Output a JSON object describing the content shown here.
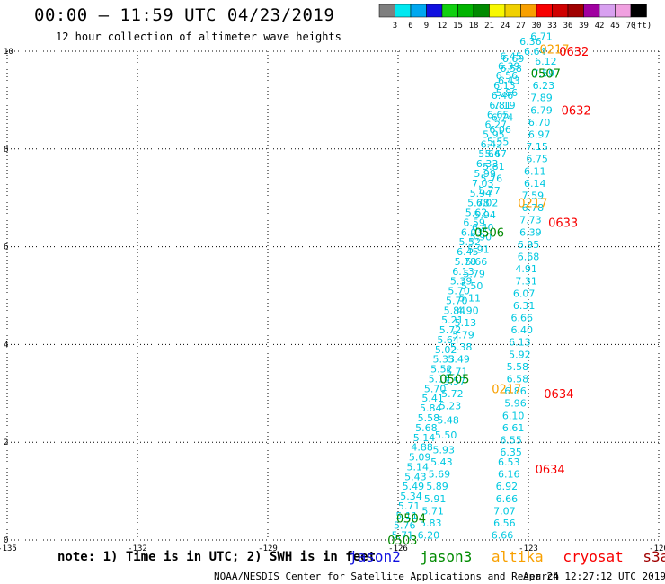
{
  "header": {
    "title": "00:00 – 11:59 UTC 04/23/2019",
    "subtitle": "12 hour collection of altimeter wave heights"
  },
  "colorbar": {
    "unit": "(ft)",
    "bins": [
      {
        "label": "3",
        "color": "#7f7f7f"
      },
      {
        "label": "6",
        "color": "#00e8f0"
      },
      {
        "label": "9",
        "color": "#00a8f0"
      },
      {
        "label": "12",
        "color": "#1010e0"
      },
      {
        "label": "15",
        "color": "#10d010"
      },
      {
        "label": "18",
        "color": "#00b400"
      },
      {
        "label": "21",
        "color": "#008a00"
      },
      {
        "label": "24",
        "color": "#f8f800"
      },
      {
        "label": "27",
        "color": "#f0d000"
      },
      {
        "label": "30",
        "color": "#f8a000"
      },
      {
        "label": "33",
        "color": "#f80000"
      },
      {
        "label": "36",
        "color": "#d00000"
      },
      {
        "label": "39",
        "color": "#a00000"
      },
      {
        "label": "42",
        "color": "#a000a0"
      },
      {
        "label": "45",
        "color": "#d8a0f0"
      },
      {
        "label": "70",
        "color": "#f0a0e0"
      },
      {
        "label": "",
        "color": "#000000"
      }
    ]
  },
  "map": {
    "lon_range": [
      -135,
      -120
    ],
    "lat_range": [
      0,
      10
    ],
    "lon_ticks": [
      "-135",
      "-132",
      "-129",
      "-126",
      "-123",
      "-120"
    ],
    "lat_ticks": [
      "0",
      "2",
      "4",
      "6",
      "8",
      "10"
    ],
    "grid": "dotted"
  },
  "chart_data": {
    "type": "scatter",
    "colors": {
      "swh": "#00c8e0",
      "jason3": "#008a00",
      "altika": "#f8a000",
      "cryosat": "#f80000"
    },
    "tracks": [
      {
        "name": "jason3 0503-0505",
        "points": [
          {
            "lon": -125.9,
            "lat": 0.1,
            "swh": "5.71"
          },
          {
            "lon": -125.85,
            "lat": 0.3,
            "swh": "5.76"
          },
          {
            "lon": -125.8,
            "lat": 0.5,
            "swh": "5.11"
          },
          {
            "lon": -125.75,
            "lat": 0.7,
            "swh": "5.71"
          },
          {
            "lon": -125.7,
            "lat": 0.9,
            "swh": "5.34"
          },
          {
            "lon": -125.65,
            "lat": 1.1,
            "swh": "5.49"
          },
          {
            "lon": -125.6,
            "lat": 1.3,
            "swh": "5.43"
          },
          {
            "lon": -125.55,
            "lat": 1.5,
            "swh": "5.14"
          },
          {
            "lon": -125.5,
            "lat": 1.7,
            "swh": "5.09"
          },
          {
            "lon": -125.45,
            "lat": 1.9,
            "swh": "4.88"
          },
          {
            "lon": -125.4,
            "lat": 2.1,
            "swh": "5.14"
          },
          {
            "lon": -125.35,
            "lat": 2.3,
            "swh": "5.68"
          },
          {
            "lon": -125.3,
            "lat": 2.5,
            "swh": "5.58"
          },
          {
            "lon": -125.25,
            "lat": 2.7,
            "swh": "5.84"
          },
          {
            "lon": -125.2,
            "lat": 2.9,
            "swh": "5.41"
          },
          {
            "lon": -125.15,
            "lat": 3.1,
            "swh": "5.70"
          },
          {
            "lon": -125.05,
            "lat": 3.3,
            "swh": "5.15"
          },
          {
            "lon": -125.0,
            "lat": 3.5,
            "swh": "5.52"
          },
          {
            "lon": -124.95,
            "lat": 3.7,
            "swh": "5.33"
          },
          {
            "lon": -124.9,
            "lat": 3.9,
            "swh": "5.02"
          },
          {
            "lon": -124.85,
            "lat": 4.1,
            "swh": "5.64"
          },
          {
            "lon": -124.8,
            "lat": 4.3,
            "swh": "5.72"
          },
          {
            "lon": -124.75,
            "lat": 4.5,
            "swh": "5.21"
          },
          {
            "lon": -124.7,
            "lat": 4.7,
            "swh": "5.84"
          },
          {
            "lon": -124.65,
            "lat": 4.9,
            "swh": "5.70"
          },
          {
            "lon": -124.6,
            "lat": 5.1,
            "swh": "5.70"
          },
          {
            "lon": -124.55,
            "lat": 5.3,
            "swh": "5.39"
          },
          {
            "lon": -124.5,
            "lat": 5.5,
            "swh": "6.13"
          },
          {
            "lon": -124.45,
            "lat": 5.7,
            "swh": "5.78"
          },
          {
            "lon": -124.4,
            "lat": 5.9,
            "swh": "6.45"
          },
          {
            "lon": -124.35,
            "lat": 6.1,
            "swh": "5.52"
          },
          {
            "lon": -124.3,
            "lat": 6.3,
            "swh": "6.03"
          },
          {
            "lon": -124.25,
            "lat": 6.5,
            "swh": "6.59"
          },
          {
            "lon": -124.2,
            "lat": 6.7,
            "swh": "5.62"
          },
          {
            "lon": -124.15,
            "lat": 6.9,
            "swh": "5.78"
          },
          {
            "lon": -124.1,
            "lat": 7.1,
            "swh": "5.94"
          },
          {
            "lon": -124.05,
            "lat": 7.3,
            "swh": "7.03"
          },
          {
            "lon": -124.0,
            "lat": 7.5,
            "swh": "5.99"
          },
          {
            "lon": -123.95,
            "lat": 7.7,
            "swh": "6.33"
          },
          {
            "lon": -123.9,
            "lat": 7.9,
            "swh": "5.64"
          },
          {
            "lon": -123.85,
            "lat": 8.1,
            "swh": "6.42"
          },
          {
            "lon": -123.8,
            "lat": 8.3,
            "swh": "5.95"
          },
          {
            "lon": -123.75,
            "lat": 8.5,
            "swh": "6.27"
          },
          {
            "lon": -123.7,
            "lat": 8.7,
            "swh": "6.65"
          },
          {
            "lon": -123.65,
            "lat": 8.9,
            "swh": "6.81"
          },
          {
            "lon": -123.6,
            "lat": 9.1,
            "swh": "6.46"
          },
          {
            "lon": -123.55,
            "lat": 9.3,
            "swh": "6.13"
          },
          {
            "lon": -123.5,
            "lat": 9.5,
            "swh": "6.56"
          },
          {
            "lon": -123.45,
            "lat": 9.7,
            "swh": "6.39"
          },
          {
            "lon": -123.4,
            "lat": 9.9,
            "swh": "6.45"
          }
        ]
      },
      {
        "name": "jason3 0504-0507",
        "points": [
          {
            "lon": -125.3,
            "lat": 0.1,
            "swh": "6.20"
          },
          {
            "lon": -125.25,
            "lat": 0.35,
            "swh": "5.83"
          },
          {
            "lon": -125.2,
            "lat": 0.6,
            "swh": "5.71"
          },
          {
            "lon": -125.15,
            "lat": 0.85,
            "swh": "5.91"
          },
          {
            "lon": -125.1,
            "lat": 1.1,
            "swh": "5.89"
          },
          {
            "lon": -125.05,
            "lat": 1.35,
            "swh": "5.69"
          },
          {
            "lon": -125.0,
            "lat": 1.6,
            "swh": "5.43"
          },
          {
            "lon": -124.95,
            "lat": 1.85,
            "swh": "5.93"
          },
          {
            "lon": -124.9,
            "lat": 2.15,
            "swh": "5.50"
          },
          {
            "lon": -124.85,
            "lat": 2.45,
            "swh": "5.48"
          },
          {
            "lon": -124.8,
            "lat": 2.75,
            "swh": "5.23"
          },
          {
            "lon": -124.75,
            "lat": 3.0,
            "swh": "5.72"
          },
          {
            "lon": -124.7,
            "lat": 3.25,
            "swh": "5.57"
          },
          {
            "lon": -124.65,
            "lat": 3.45,
            "swh": "5.71"
          },
          {
            "lon": -124.6,
            "lat": 3.7,
            "swh": "5.49"
          },
          {
            "lon": -124.55,
            "lat": 3.95,
            "swh": "5.38"
          },
          {
            "lon": -124.5,
            "lat": 4.2,
            "swh": "5.79"
          },
          {
            "lon": -124.45,
            "lat": 4.45,
            "swh": "5.13"
          },
          {
            "lon": -124.4,
            "lat": 4.7,
            "swh": "4.90"
          },
          {
            "lon": -124.35,
            "lat": 4.95,
            "swh": "5.11"
          },
          {
            "lon": -124.3,
            "lat": 5.2,
            "swh": "5.50"
          },
          {
            "lon": -124.25,
            "lat": 5.45,
            "swh": "5.79"
          },
          {
            "lon": -124.2,
            "lat": 5.7,
            "swh": "5.66"
          },
          {
            "lon": -124.15,
            "lat": 5.95,
            "swh": "5.91"
          },
          {
            "lon": -124.1,
            "lat": 6.2,
            "swh": "5.90"
          },
          {
            "lon": -124.05,
            "lat": 6.4,
            "swh": "6.40"
          },
          {
            "lon": -124.0,
            "lat": 6.65,
            "swh": "5.94"
          },
          {
            "lon": -123.95,
            "lat": 6.9,
            "swh": "6.02"
          },
          {
            "lon": -123.9,
            "lat": 7.15,
            "swh": "5.77"
          },
          {
            "lon": -123.85,
            "lat": 7.4,
            "swh": "5.76"
          },
          {
            "lon": -123.8,
            "lat": 7.65,
            "swh": "5.81"
          },
          {
            "lon": -123.75,
            "lat": 7.9,
            "swh": "5.67"
          },
          {
            "lon": -123.7,
            "lat": 8.15,
            "swh": "5.55"
          },
          {
            "lon": -123.65,
            "lat": 8.4,
            "swh": "6.06"
          },
          {
            "lon": -123.6,
            "lat": 8.65,
            "swh": "6.74"
          },
          {
            "lon": -123.55,
            "lat": 8.9,
            "swh": "7.19"
          },
          {
            "lon": -123.5,
            "lat": 9.15,
            "swh": "5.86"
          },
          {
            "lon": -123.45,
            "lat": 9.4,
            "swh": "6.43"
          },
          {
            "lon": -123.4,
            "lat": 9.65,
            "swh": "6.58"
          },
          {
            "lon": -123.35,
            "lat": 9.85,
            "swh": "6.69"
          }
        ]
      },
      {
        "name": "cryosat 0634-0632",
        "points": [
          {
            "lon": -123.6,
            "lat": 0.1,
            "swh": "6.66"
          },
          {
            "lon": -123.55,
            "lat": 0.35,
            "swh": "6.56"
          },
          {
            "lon": -123.55,
            "lat": 0.6,
            "swh": "7.07"
          },
          {
            "lon": -123.5,
            "lat": 0.85,
            "swh": "6.66"
          },
          {
            "lon": -123.5,
            "lat": 1.1,
            "swh": "6.92"
          },
          {
            "lon": -123.45,
            "lat": 1.35,
            "swh": "6.16"
          },
          {
            "lon": -123.45,
            "lat": 1.6,
            "swh": "6.53"
          },
          {
            "lon": -123.4,
            "lat": 1.8,
            "swh": "6.35"
          },
          {
            "lon": -123.4,
            "lat": 2.05,
            "swh": "6.55"
          },
          {
            "lon": -123.35,
            "lat": 2.3,
            "swh": "6.61"
          },
          {
            "lon": -123.35,
            "lat": 2.55,
            "swh": "6.10"
          },
          {
            "lon": -123.3,
            "lat": 2.8,
            "swh": "5.96"
          },
          {
            "lon": -123.3,
            "lat": 3.05,
            "swh": "6.86"
          },
          {
            "lon": -123.25,
            "lat": 3.3,
            "swh": "6.58"
          },
          {
            "lon": -123.25,
            "lat": 3.55,
            "swh": "5.58"
          },
          {
            "lon": -123.2,
            "lat": 3.8,
            "swh": "5.92"
          },
          {
            "lon": -123.2,
            "lat": 4.05,
            "swh": "6.13"
          },
          {
            "lon": -123.15,
            "lat": 4.3,
            "swh": "6.40"
          },
          {
            "lon": -123.15,
            "lat": 4.55,
            "swh": "6.66"
          },
          {
            "lon": -123.1,
            "lat": 4.8,
            "swh": "6.31"
          },
          {
            "lon": -123.1,
            "lat": 5.05,
            "swh": "6.07"
          },
          {
            "lon": -123.05,
            "lat": 5.3,
            "swh": "7.31"
          },
          {
            "lon": -123.05,
            "lat": 5.55,
            "swh": "4.91"
          },
          {
            "lon": -123.0,
            "lat": 5.8,
            "swh": "6.68"
          },
          {
            "lon": -123.0,
            "lat": 6.05,
            "swh": "6.95"
          },
          {
            "lon": -122.95,
            "lat": 6.3,
            "swh": "6.39"
          },
          {
            "lon": -122.95,
            "lat": 6.55,
            "swh": "7.73"
          },
          {
            "lon": -122.9,
            "lat": 6.8,
            "swh": "6.78"
          },
          {
            "lon": -122.9,
            "lat": 7.05,
            "swh": "7.59"
          },
          {
            "lon": -122.85,
            "lat": 7.3,
            "swh": "6.14"
          },
          {
            "lon": -122.85,
            "lat": 7.55,
            "swh": "6.11"
          },
          {
            "lon": -122.8,
            "lat": 7.8,
            "swh": "6.75"
          },
          {
            "lon": -122.8,
            "lat": 8.05,
            "swh": "7.15"
          },
          {
            "lon": -122.75,
            "lat": 8.3,
            "swh": "6.97"
          },
          {
            "lon": -122.75,
            "lat": 8.55,
            "swh": "6.70"
          },
          {
            "lon": -122.7,
            "lat": 8.8,
            "swh": "6.79"
          },
          {
            "lon": -122.7,
            "lat": 9.05,
            "swh": "7.89"
          },
          {
            "lon": -122.65,
            "lat": 9.3,
            "swh": "6.23"
          },
          {
            "lon": -122.65,
            "lat": 9.55,
            "swh": "7.59"
          },
          {
            "lon": -122.6,
            "lat": 9.8,
            "swh": "6.12"
          }
        ]
      },
      {
        "name": "jason3 0507 top",
        "points": [
          {
            "lon": -122.85,
            "lat": 10.0,
            "swh": "6.64"
          },
          {
            "lon": -122.95,
            "lat": 10.2,
            "swh": "6.36"
          },
          {
            "lon": -122.7,
            "lat": 10.3,
            "swh": "6.71"
          }
        ]
      }
    ],
    "time_labels": [
      {
        "lon": -125.9,
        "lat": 0.0,
        "text": "0503",
        "sat": "jason3"
      },
      {
        "lon": -125.7,
        "lat": 0.45,
        "text": "0504",
        "sat": "jason3"
      },
      {
        "lon": -124.7,
        "lat": 3.3,
        "text": "0505",
        "sat": "jason3"
      },
      {
        "lon": -123.9,
        "lat": 6.3,
        "text": "0506",
        "sat": "jason3"
      },
      {
        "lon": -122.6,
        "lat": 9.55,
        "text": "0507",
        "sat": "jason3"
      },
      {
        "lon": -123.5,
        "lat": 3.1,
        "text": "0217",
        "sat": "altika"
      },
      {
        "lon": -122.9,
        "lat": 6.9,
        "text": "0217",
        "sat": "altika"
      },
      {
        "lon": -122.4,
        "lat": 10.05,
        "text": "0217",
        "sat": "altika"
      },
      {
        "lon": -122.5,
        "lat": 1.45,
        "text": "0634",
        "sat": "cryosat"
      },
      {
        "lon": -122.3,
        "lat": 3.0,
        "text": "0634",
        "sat": "cryosat"
      },
      {
        "lon": -122.2,
        "lat": 6.5,
        "text": "0633",
        "sat": "cryosat"
      },
      {
        "lon": -121.9,
        "lat": 8.8,
        "text": "0632",
        "sat": "cryosat"
      },
      {
        "lon": -121.95,
        "lat": 10.0,
        "text": "0632",
        "sat": "cryosat"
      }
    ]
  },
  "footer": {
    "note": "note: 1) Time is in UTC; 2) SWH is in feet",
    "satellites": [
      {
        "name": "jason2",
        "color": "#1010e0"
      },
      {
        "name": "jason3",
        "color": "#008a00"
      },
      {
        "name": "altika",
        "color": "#f8a000"
      },
      {
        "name": "cryosat",
        "color": "#f80000"
      },
      {
        "name": "s3a",
        "color": "#a00000"
      }
    ],
    "credit": "NOAA/NESDIS Center for Satellite Applications and Research",
    "timestamp": "Apr 24 12:27:12 UTC 2019"
  }
}
